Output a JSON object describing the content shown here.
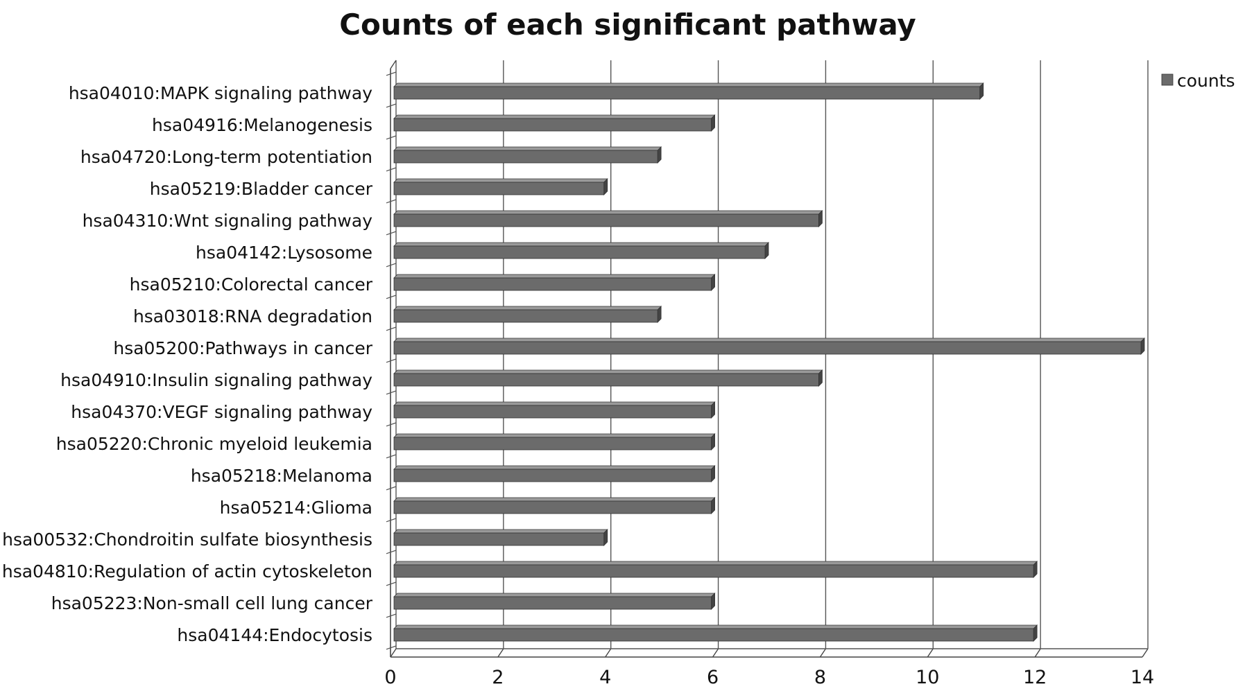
{
  "chart_data": {
    "type": "bar",
    "orientation": "horizontal",
    "title": "Counts of each significant pathway",
    "xlabel": "",
    "ylabel": "",
    "xlim": [
      0,
      14
    ],
    "xticks": [
      0,
      2,
      4,
      6,
      8,
      10,
      12,
      14
    ],
    "grid": true,
    "legend": "top-right",
    "colors": {
      "bar": "#6b6b6b",
      "bar_top": "#9a9a9a",
      "bar_side": "#444444"
    },
    "categories": [
      "hsa04010:MAPK signaling pathway",
      "hsa04916:Melanogenesis",
      "hsa04720:Long-term potentiation",
      "hsa05219:Bladder cancer",
      "hsa04310:Wnt signaling pathway",
      "hsa04142:Lysosome",
      "hsa05210:Colorectal cancer",
      "hsa03018:RNA degradation",
      "hsa05200:Pathways in cancer",
      "hsa04910:Insulin signaling pathway",
      "hsa04370:VEGF signaling pathway",
      "hsa05220:Chronic myeloid leukemia",
      "hsa05218:Melanoma",
      "hsa05214:Glioma",
      "hsa00532:Chondroitin sulfate biosynthesis",
      "hsa04810:Regulation of actin cytoskeleton",
      "hsa05223:Non-small cell lung cancer",
      "hsa04144:Endocytosis"
    ],
    "series": [
      {
        "name": "counts",
        "values": [
          11,
          6,
          5,
          4,
          8,
          7,
          6,
          5,
          14,
          8,
          6,
          6,
          6,
          6,
          4,
          12,
          6,
          12
        ]
      }
    ]
  }
}
